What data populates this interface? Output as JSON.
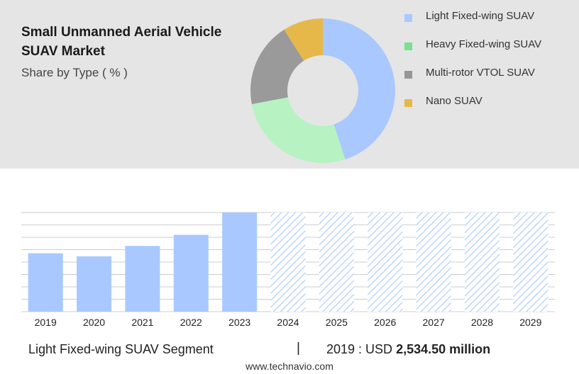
{
  "header": {
    "title": "Small Unmanned Aerial Vehicle SUAV Market",
    "subtitle": "Share by Type ( % )"
  },
  "legend": {
    "items": [
      {
        "label": "Light Fixed-wing SUAV",
        "color": "#a9c8ff"
      },
      {
        "label": "Heavy Fixed-wing SUAV",
        "color": "#79e08f"
      },
      {
        "label": "Multi-rotor VTOL SUAV",
        "color": "#969696"
      },
      {
        "label": "Nano SUAV",
        "color": "#e6b84a"
      }
    ]
  },
  "chart_data": [
    {
      "type": "pie",
      "style": "donut",
      "categories": [
        "Light Fixed-wing SUAV",
        "Heavy Fixed-wing SUAV",
        "Multi-rotor VTOL SUAV",
        "Nano SUAV"
      ],
      "values": [
        45,
        27,
        19,
        9
      ],
      "colors": [
        "#a9c8ff",
        "#b7f2c3",
        "#9a9a9a",
        "#e6b84a"
      ]
    },
    {
      "type": "bar",
      "categories": [
        "2019",
        "2020",
        "2021",
        "2022",
        "2023",
        "2024",
        "2025",
        "2026",
        "2027",
        "2028",
        "2029"
      ],
      "values": [
        2534.5,
        2400,
        2850,
        3330,
        4300,
        4300,
        4300,
        4300,
        4300,
        4300,
        4300
      ],
      "forecast_from": "2024",
      "bar_color": "#a9c8ff",
      "forecast_style": "hatched",
      "ylim": [
        0,
        4300
      ],
      "grid": true
    }
  ],
  "footer": {
    "segment": "Light Fixed-wing SUAV Segment",
    "separator": "|",
    "year_label": "2019 : USD",
    "amount": "2,534.50 million",
    "source": "www.technavio.com"
  }
}
